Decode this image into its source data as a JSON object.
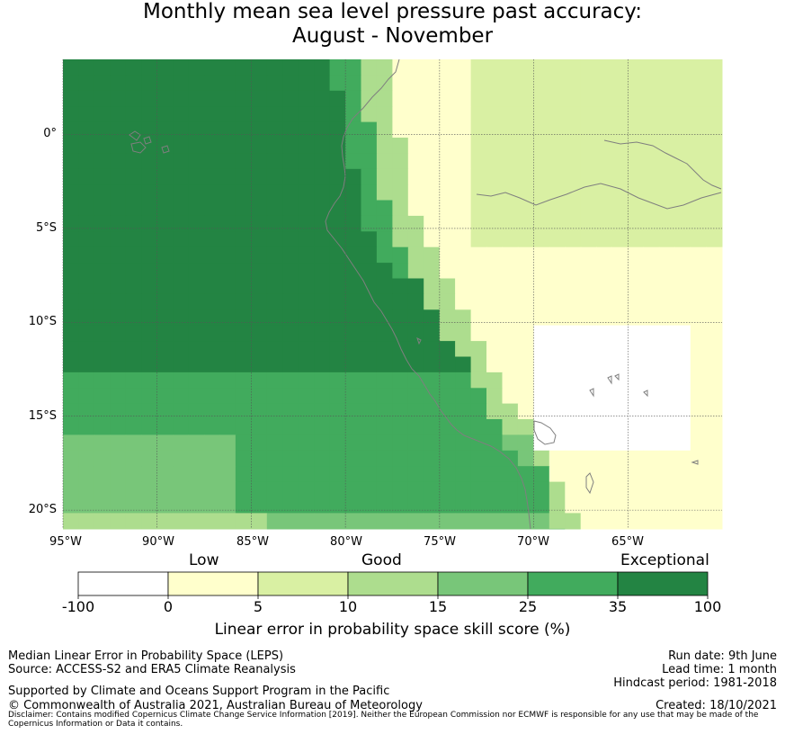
{
  "title": {
    "line1": "Monthly mean sea level pressure past accuracy:",
    "line2": "August - November"
  },
  "map": {
    "lon_range": [
      -95,
      -60
    ],
    "lat_range": [
      -21,
      4
    ],
    "x_ticks": [
      "95°W",
      "90°W",
      "85°W",
      "80°W",
      "75°W",
      "70°W",
      "65°W"
    ],
    "y_ticks": [
      "0°",
      "5°S",
      "10°S",
      "15°S",
      "20°S"
    ],
    "coastline_color": "#7f7f7f",
    "gridline_color": "#555555"
  },
  "colorbar": {
    "categories": [
      "Low",
      "Good",
      "Exceptional"
    ],
    "ticks": [
      "-100",
      "0",
      "5",
      "10",
      "15",
      "25",
      "35",
      "100"
    ],
    "colors": [
      "#ffffff",
      "#ffffcc",
      "#d9f0a3",
      "#addd8e",
      "#78c679",
      "#41ab5d",
      "#238443"
    ],
    "label": "Linear error in probability space skill score (%)"
  },
  "footer": {
    "left": {
      "line1": "Median Linear Error in Probability Space (LEPS)",
      "line2": "Source: ACCESS-S2 and ERA5 Climate Reanalysis",
      "support": "Supported by Climate and Oceans Support Program in the Pacific",
      "copyright": "© Commonwealth of Australia 2021, Australian Bureau of Meteorology"
    },
    "right": {
      "run_date": "Run date: 9th June",
      "lead_time": "Lead time: 1 month",
      "hindcast": "Hindcast period: 1981-2018",
      "created": "Created: 18/10/2021"
    },
    "disclaimer": "Disclaimer: Contains modified Copernicus Climate Change Service Information [2019]. Neither the European Commission nor ECMWF is responsible for any use that may be made of the Copernicus Information or Data it contains."
  }
}
